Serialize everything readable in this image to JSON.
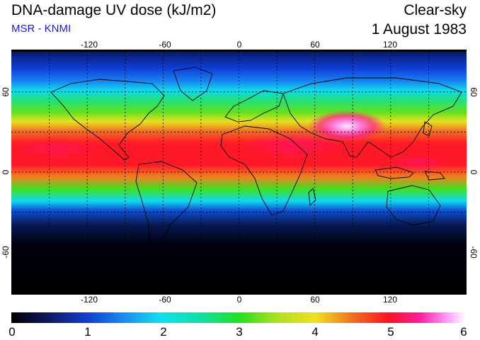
{
  "header": {
    "title": "DNA-damage UV dose (kJ/m2)",
    "source": "MSR - KNMI",
    "mode": "Clear-sky",
    "date": "1 August 1983"
  },
  "map": {
    "projection": "equirectangular",
    "lon_range": [
      -180,
      180
    ],
    "lat_range": [
      -90,
      90
    ],
    "lon_tick_labels": [
      "-120",
      "-60",
      "0",
      "60",
      "120"
    ],
    "lat_tick_labels_left": [
      "60",
      "0",
      "-60"
    ],
    "lat_tick_labels_right": [
      "60",
      "0",
      "-60"
    ],
    "gridlines": "dotted, every 30 degrees",
    "colors": {
      "polar_dark": "#000000",
      "high_lat": "#1040d0",
      "mid_lat": "#10e0f0",
      "subtropics": "#f0e020",
      "tropics": "#ff1020",
      "peak_tibet": "#ffa0ff"
    }
  },
  "colorbar": {
    "min": 0,
    "max": 6,
    "tick_labels": [
      "0",
      "1",
      "2",
      "3",
      "4",
      "5",
      "6"
    ]
  }
}
